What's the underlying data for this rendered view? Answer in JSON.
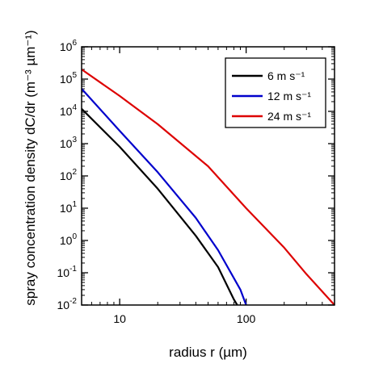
{
  "chart_data": {
    "type": "line",
    "xlabel": "radius r (µm)",
    "ylabel": "spray concentration density dC/dr (m⁻³ µm⁻¹)",
    "x_scale": "log",
    "y_scale": "log",
    "xlim": [
      5,
      500
    ],
    "ylim": [
      0.01,
      1000000
    ],
    "x_ticks": [
      {
        "value": 10,
        "label": "10"
      },
      {
        "value": 100,
        "label": "100"
      }
    ],
    "y_ticks": [
      {
        "value": 0.01,
        "base": "10",
        "exp": "-2"
      },
      {
        "value": 0.1,
        "base": "10",
        "exp": "-1"
      },
      {
        "value": 1,
        "base": "10",
        "exp": "0"
      },
      {
        "value": 10,
        "base": "10",
        "exp": "1"
      },
      {
        "value": 100,
        "base": "10",
        "exp": "2"
      },
      {
        "value": 1000,
        "base": "10",
        "exp": "3"
      },
      {
        "value": 10000,
        "base": "10",
        "exp": "4"
      },
      {
        "value": 100000,
        "base": "10",
        "exp": "5"
      },
      {
        "value": 1000000,
        "base": "10",
        "exp": "6"
      }
    ],
    "grid": false,
    "legend_position": "top-right",
    "series": [
      {
        "name": "6 m s⁻¹",
        "color": "#000000",
        "points": [
          [
            5,
            12000
          ],
          [
            10,
            800
          ],
          [
            20,
            40
          ],
          [
            40,
            1.4
          ],
          [
            60,
            0.15
          ],
          [
            80,
            0.015
          ],
          [
            85,
            0.01
          ]
        ]
      },
      {
        "name": "12 m s⁻¹",
        "color": "#0000cc",
        "points": [
          [
            5,
            50000
          ],
          [
            10,
            2500
          ],
          [
            20,
            130
          ],
          [
            40,
            5
          ],
          [
            60,
            0.5
          ],
          [
            90,
            0.03
          ],
          [
            100,
            0.01
          ]
        ]
      },
      {
        "name": "24 m s⁻¹",
        "color": "#dd0000",
        "points": [
          [
            5,
            200000
          ],
          [
            10,
            30000
          ],
          [
            20,
            4000
          ],
          [
            50,
            200
          ],
          [
            100,
            10
          ],
          [
            200,
            0.6
          ],
          [
            300,
            0.09
          ],
          [
            500,
            0.01
          ]
        ]
      }
    ]
  }
}
